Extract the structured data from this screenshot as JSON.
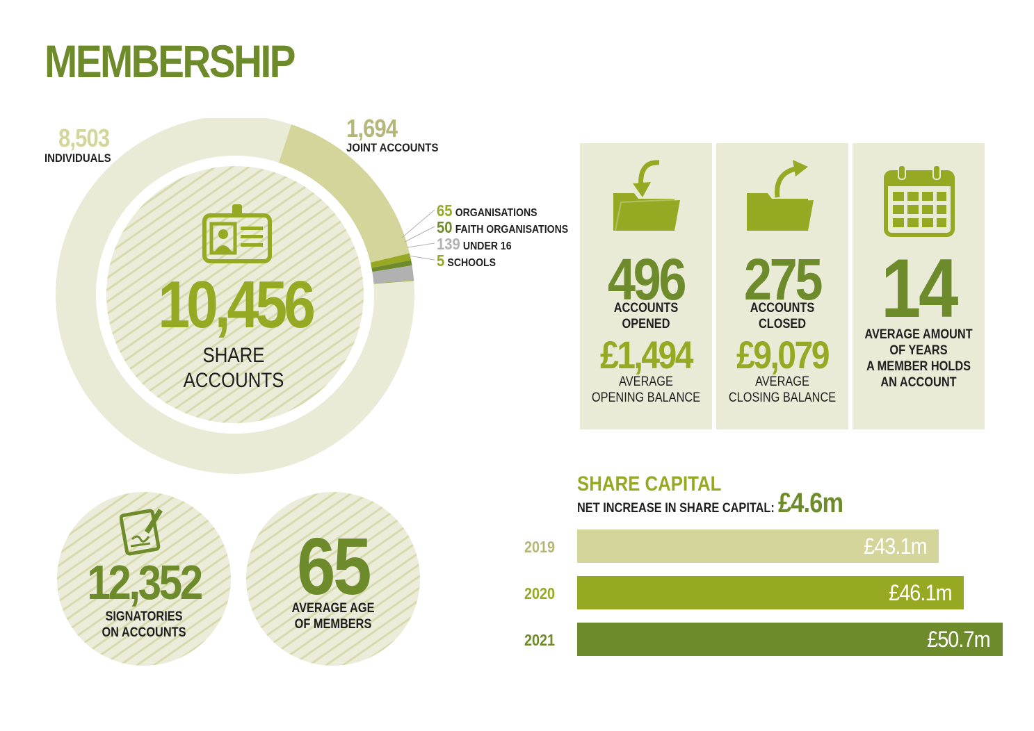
{
  "title": "MEMBERSHIP",
  "donut": {
    "segments": [
      {
        "value": "8,503",
        "label": "INDIVIDUALS",
        "color": "#e9ebd6"
      },
      {
        "value": "1,694",
        "label": "JOINT ACCOUNTS",
        "color": "#d3d59a"
      },
      {
        "value": "65",
        "label": "ORGANISATIONS",
        "color": "#97a823"
      },
      {
        "value": "50",
        "label": "FAITH ORGANISATIONS",
        "color": "#6e8b2b"
      },
      {
        "value": "139",
        "label": "UNDER 16",
        "color": "#b1b1b1"
      },
      {
        "value": "5",
        "label": "SCHOOLS",
        "color": "#97a823"
      }
    ],
    "center_value": "10,456",
    "center_label_1": "SHARE",
    "center_label_2": "ACCOUNTS",
    "center_icon": "id-badge-icon"
  },
  "panels": {
    "opened": {
      "value": "496",
      "label": "ACCOUNTS OPENED",
      "icon": "folder-in-icon"
    },
    "opening_balance": {
      "value": "£1,494",
      "label_1": "AVERAGE",
      "label_2": "OPENING BALANCE"
    },
    "closed": {
      "value": "275",
      "label": "ACCOUNTS CLOSED",
      "icon": "folder-out-icon"
    },
    "closing_balance": {
      "value": "£9,079",
      "label_1": "AVERAGE",
      "label_2": "CLOSING BALANCE"
    },
    "years": {
      "value": "14",
      "label_1": "AVERAGE AMOUNT",
      "label_2": "OF YEARS",
      "label_3": "A MEMBER HOLDS",
      "label_4": "AN ACCOUNT",
      "icon": "calendar-icon"
    }
  },
  "signatories": {
    "value": "12,352",
    "label_1": "SIGNATORIES",
    "label_2": "ON ACCOUNTS",
    "icon": "signed-document-icon"
  },
  "age": {
    "value": "65",
    "label_1": "AVERAGE AGE",
    "label_2": "OF MEMBERS"
  },
  "share_capital": {
    "title": "SHARE CAPITAL",
    "subtitle": "NET INCREASE IN SHARE CAPITAL:",
    "increase": "£4.6m"
  },
  "chart_data": {
    "type": "bar",
    "orientation": "horizontal",
    "title": "SHARE CAPITAL",
    "categories": [
      "2019",
      "2020",
      "2021"
    ],
    "values": [
      43.1,
      46.1,
      50.7
    ],
    "value_labels": [
      "£43.1m",
      "£46.1m",
      "£50.7m"
    ],
    "colors": [
      "#d3d59a",
      "#97a823",
      "#6e8b2b"
    ],
    "xlim": [
      0,
      50.7
    ],
    "grid": false
  }
}
